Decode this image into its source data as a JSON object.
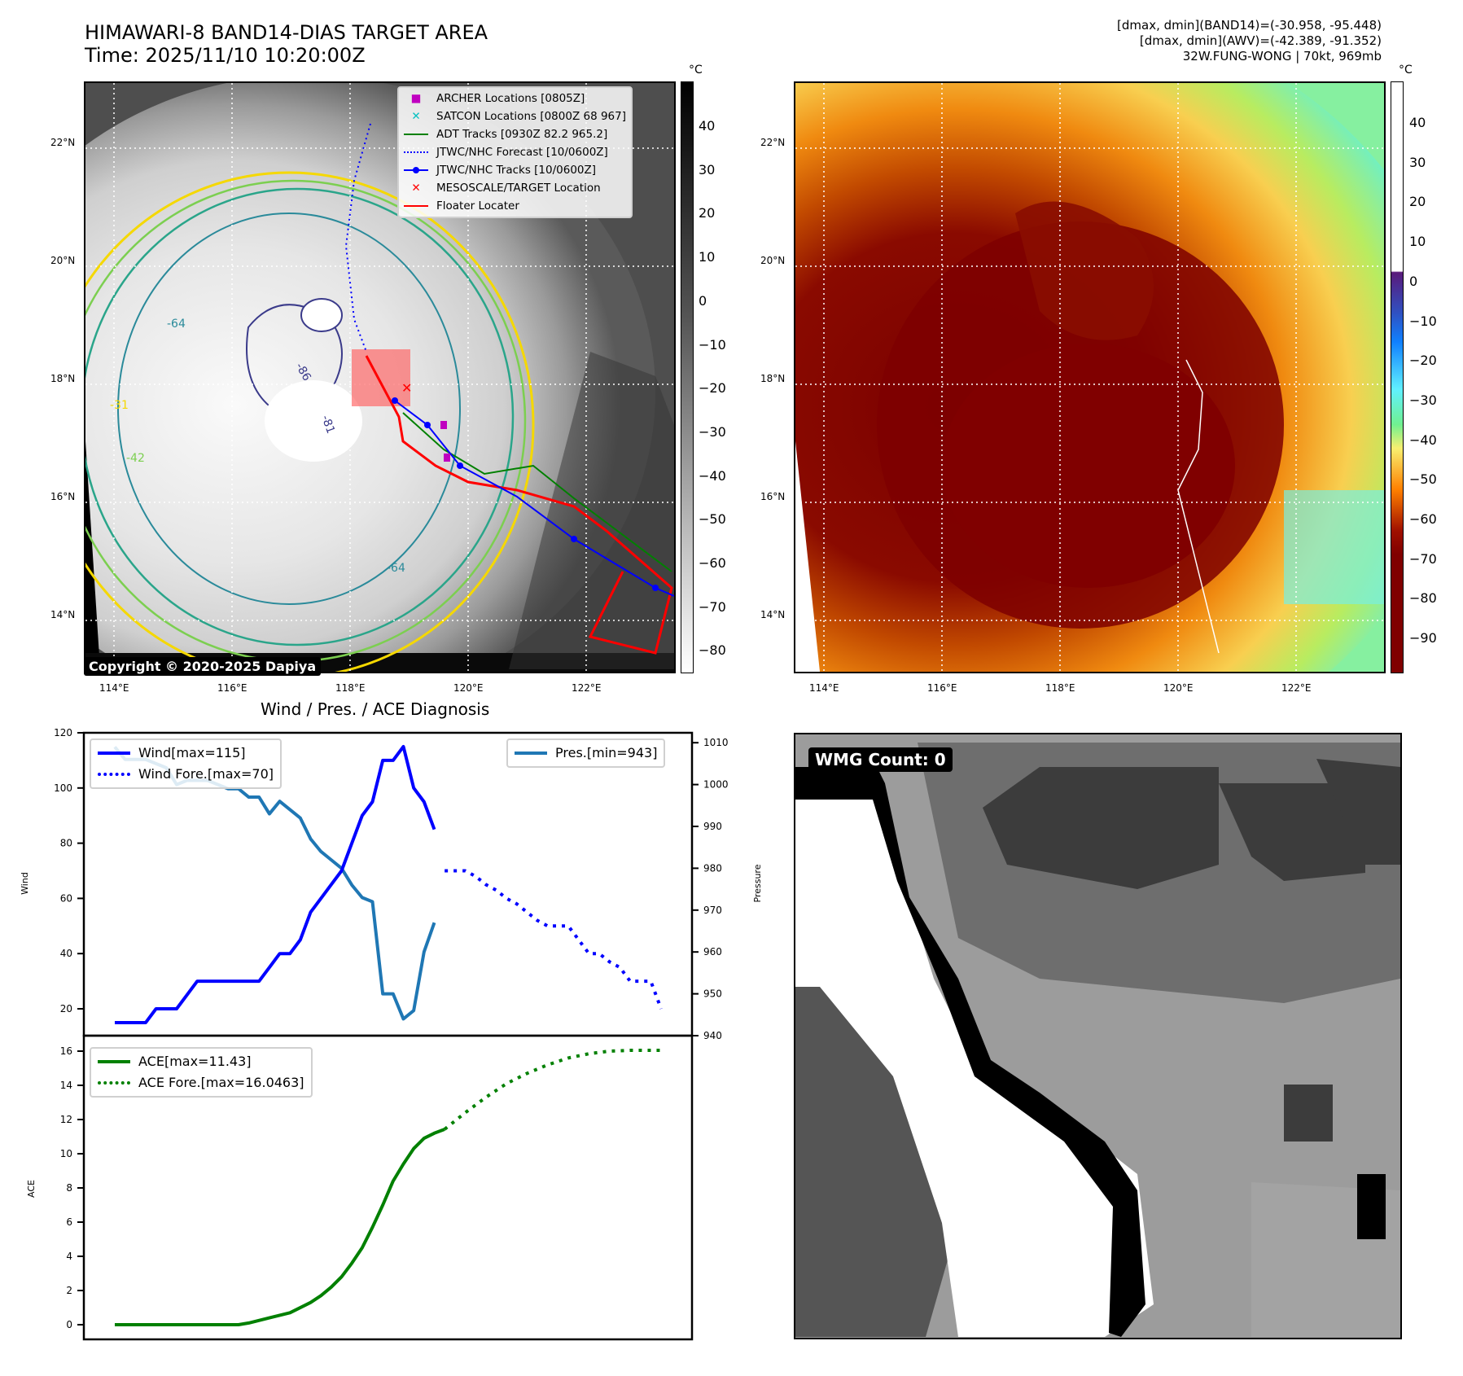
{
  "header": {
    "title_line1": "HIMAWARI-8 BAND14-DIAS TARGET AREA",
    "title_line2": "Time: 2025/11/10 10:20:00Z",
    "stats_line1": "[dmax, dmin](BAND14)=(-30.958, -95.448)",
    "stats_line2": "[dmax, dmin](AWV)=(-42.389, -91.352)",
    "stats_line3": "32W.FUNG-WONG | 70kt, 969mb"
  },
  "map_left": {
    "lat_labels": [
      "22°N",
      "20°N",
      "18°N",
      "16°N",
      "14°N"
    ],
    "lon_labels": [
      "114°E",
      "116°E",
      "118°E",
      "120°E",
      "122°E"
    ],
    "contour_labels": [
      "-64",
      "-31",
      "-42",
      "-64",
      "-81",
      "-86"
    ],
    "copyright": "Copyright © 2020-2025 Dapiya",
    "legend": [
      {
        "label": "ARCHER Locations [0805Z]",
        "color": "#c000c0",
        "marker": "square"
      },
      {
        "label": "SATCON Locations [0800Z 68 967]",
        "color": "#00c0c0",
        "marker": "x"
      },
      {
        "label": "ADT Tracks [0930Z 82.2 965.2]",
        "color": "#008000",
        "marker": "line"
      },
      {
        "label": "JTWC/NHC Forecast [10/0600Z]",
        "color": "#0000ff",
        "marker": "dotted"
      },
      {
        "label": "JTWC/NHC Tracks [10/0600Z]",
        "color": "#0000ff",
        "marker": "line-dot"
      },
      {
        "label": "MESOSCALE/TARGET Location",
        "color": "#ff0000",
        "marker": "x"
      },
      {
        "label": "Floater Locater",
        "color": "#ff0000",
        "marker": "line"
      }
    ],
    "colorbar": {
      "unit": "°C",
      "ticks": [
        "40",
        "30",
        "20",
        "10",
        "0",
        "−10",
        "−20",
        "−30",
        "−40",
        "−50",
        "−60",
        "−70",
        "−80"
      ]
    }
  },
  "map_right": {
    "lat_labels": [
      "22°N",
      "20°N",
      "18°N",
      "16°N",
      "14°N"
    ],
    "lon_labels": [
      "114°E",
      "116°E",
      "118°E",
      "120°E",
      "122°E"
    ],
    "colorbar": {
      "unit": "°C",
      "ticks": [
        "40",
        "30",
        "20",
        "10",
        "0",
        "−10",
        "−20",
        "−30",
        "−40",
        "−50",
        "−60",
        "−70",
        "−80",
        "−90"
      ]
    }
  },
  "wmg_panel": {
    "label": "WMG Count: 0"
  },
  "chart_data": [
    {
      "type": "line",
      "title": "Wind / Pres. / ACE Diagnosis",
      "ylabel": "Wind",
      "y2label": "Pressure",
      "ylim": [
        14,
        120
      ],
      "y2lim": [
        938,
        1012
      ],
      "yticks": [
        "120",
        "100",
        "80",
        "60",
        "40",
        "20"
      ],
      "y2ticks": [
        "1010",
        "1000",
        "990",
        "980",
        "970",
        "960",
        "950",
        "940"
      ],
      "series": [
        {
          "name": "Wind[max=115]",
          "color": "#0000ff",
          "style": "solid",
          "x": [
            0,
            1,
            2,
            3,
            4,
            5,
            6,
            7,
            8,
            9,
            10,
            11,
            12,
            13,
            14,
            15,
            16,
            17,
            18,
            19,
            20,
            21,
            22,
            23,
            24,
            25,
            26,
            27,
            28,
            29,
            30,
            31
          ],
          "values": [
            15,
            15,
            15,
            15,
            20,
            20,
            20,
            25,
            30,
            30,
            30,
            30,
            30,
            30,
            30,
            35,
            40,
            40,
            45,
            55,
            60,
            65,
            70,
            80,
            90,
            95,
            110,
            110,
            115,
            100,
            95,
            85
          ]
        },
        {
          "name": "Wind Fore.[max=70]",
          "color": "#0000ff",
          "style": "dotted",
          "x": [
            32,
            33,
            34,
            35,
            36,
            37,
            38,
            39,
            40,
            41,
            42,
            43,
            44,
            45,
            46,
            47,
            48,
            49,
            50,
            51,
            52,
            53
          ],
          "values": [
            70,
            70,
            70,
            68,
            65,
            63,
            60,
            58,
            55,
            52,
            50,
            50,
            50,
            45,
            40,
            40,
            37,
            35,
            30,
            30,
            30,
            20
          ]
        },
        {
          "name": "Pres.[min=943]",
          "color": "#1f77b4",
          "style": "solid",
          "axis": "y2",
          "x": [
            0,
            1,
            2,
            3,
            4,
            5,
            6,
            7,
            8,
            9,
            10,
            11,
            12,
            13,
            14,
            15,
            16,
            17,
            18,
            19,
            20,
            21,
            22,
            23,
            24,
            25,
            26,
            27,
            28,
            29,
            30,
            31
          ],
          "values": [
            1009,
            1006,
            1006,
            1006,
            1005,
            1004,
            1000,
            1001,
            1001,
            1001,
            1000,
            999,
            999,
            997,
            997,
            993,
            996,
            994,
            992,
            987,
            984,
            982,
            980,
            976,
            973,
            972,
            950,
            950,
            944,
            946,
            960,
            967
          ]
        }
      ],
      "legend_left": [
        "Wind[max=115]",
        "Wind Fore.[max=70]"
      ],
      "legend_right": [
        "Pres.[min=943]"
      ]
    },
    {
      "type": "line",
      "ylabel": "ACE",
      "ylim": [
        -0.5,
        17
      ],
      "yticks": [
        "16",
        "14",
        "12",
        "10",
        "8",
        "6",
        "4",
        "2",
        "0"
      ],
      "series": [
        {
          "name": "ACE[max=11.43]",
          "color": "#008000",
          "style": "solid",
          "x": [
            0,
            4,
            8,
            12,
            13,
            15,
            17,
            19,
            20,
            21,
            22,
            23,
            24,
            25,
            26,
            27,
            28,
            29,
            30,
            31,
            32
          ],
          "values": [
            0,
            0,
            0,
            0,
            0.1,
            0.4,
            0.7,
            1.3,
            1.7,
            2.2,
            2.8,
            3.6,
            4.5,
            5.7,
            7.0,
            8.4,
            9.4,
            10.3,
            10.9,
            11.2,
            11.43
          ]
        },
        {
          "name": "ACE Fore.[max=16.0463]",
          "color": "#008000",
          "style": "dotted",
          "x": [
            32,
            34,
            36,
            38,
            40,
            42,
            44,
            46,
            48,
            50,
            52,
            53
          ],
          "values": [
            11.43,
            12.4,
            13.3,
            14.1,
            14.7,
            15.2,
            15.6,
            15.85,
            16.0,
            16.0463,
            16.0463,
            16.0463
          ]
        }
      ],
      "legend": [
        "ACE[max=11.43]",
        "ACE Fore.[max=16.0463]"
      ]
    }
  ]
}
